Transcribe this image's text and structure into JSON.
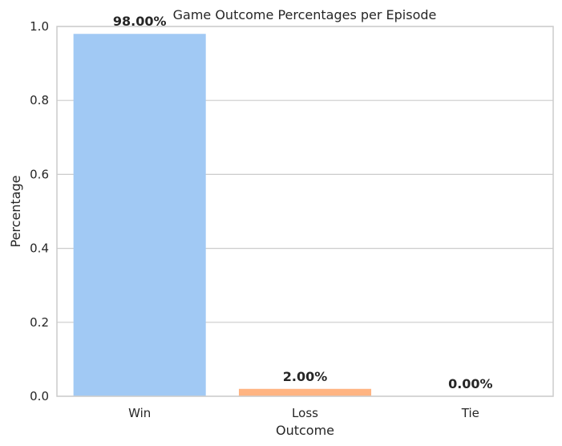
{
  "chart_data": {
    "type": "bar",
    "title": "Game Outcome Percentages per Episode",
    "xlabel": "Outcome",
    "ylabel": "Percentage",
    "categories": [
      "Win",
      "Loss",
      "Tie"
    ],
    "values": [
      0.98,
      0.02,
      0.0
    ],
    "data_labels": [
      "98.00%",
      "2.00%",
      "0.00%"
    ],
    "colors": [
      "#a1c9f4",
      "#ffb482",
      "#8de5a1"
    ],
    "ylim": [
      0,
      1.0
    ],
    "yticks": [
      0.0,
      0.2,
      0.4,
      0.6,
      0.8,
      1.0
    ],
    "ytick_labels": [
      "0.0",
      "0.2",
      "0.4",
      "0.6",
      "0.8",
      "1.0"
    ],
    "grid": true,
    "grid_axis": "y"
  }
}
